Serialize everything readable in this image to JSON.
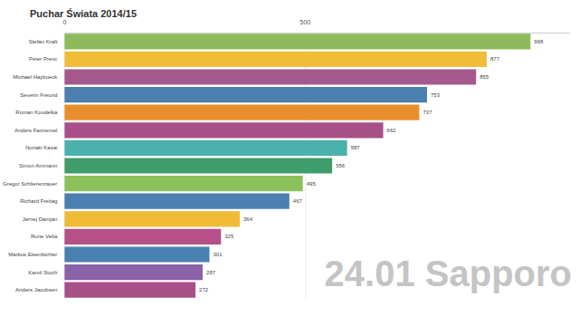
{
  "chart_data": {
    "type": "bar",
    "title": "Puchar Świata 2014/15",
    "orientation": "horizontal",
    "categories": [
      "Stefan Kraft",
      "Peter Prevc",
      "Michael Hayboeck",
      "Severin Freund",
      "Roman Koudelka",
      "Anders Fannemel",
      "Noriaki Kasai",
      "Simon Ammann",
      "Gregor Schlierenzauer",
      "Richard Freitag",
      "Jernej Damjan",
      "Rune Velta",
      "Markus Eisenbichler",
      "Kamil Stoch",
      "Anders Jacobsen"
    ],
    "values": [
      968,
      877,
      855,
      753,
      737,
      662,
      587,
      556,
      495,
      467,
      364,
      325,
      301,
      287,
      272
    ],
    "colors": [
      "#8dbb5c",
      "#f0bd38",
      "#a5588e",
      "#4a7fb0",
      "#e88f2c",
      "#a9508a",
      "#4bb1ad",
      "#3f9d6b",
      "#8cc05a",
      "#4a7fb0",
      "#f0bc35",
      "#b5508b",
      "#4a80b0",
      "#8b62a8",
      "#a8508a"
    ],
    "xlim": [
      0,
      1050
    ],
    "xticks": [
      0,
      500
    ],
    "grid": true,
    "data_labels": true,
    "annotation": "24.01 Sapporo"
  }
}
